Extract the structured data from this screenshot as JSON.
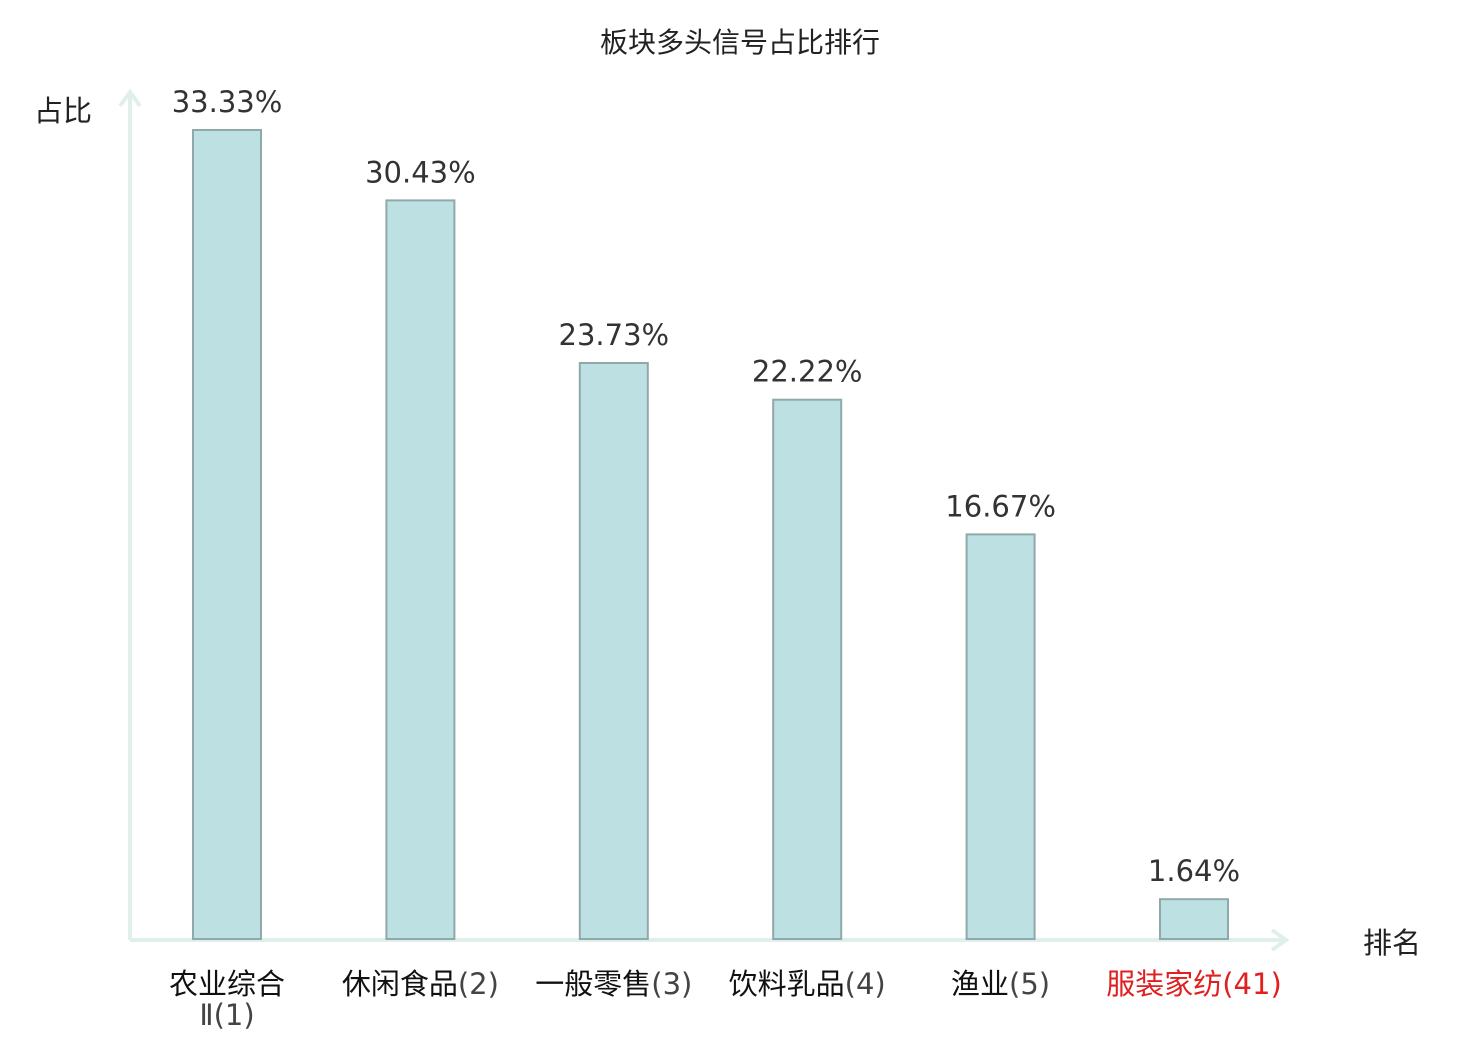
{
  "chart_data": {
    "type": "bar",
    "title": "板块多头信号占比排行",
    "ylabel": "占比",
    "xlabel": "排名",
    "ylim": [
      0,
      35
    ],
    "grid": false,
    "legend": "none",
    "categories": [
      {
        "name": "农业综合Ⅱ",
        "rank": "(1)"
      },
      {
        "name": "休闲食品",
        "rank": "(2)"
      },
      {
        "name": "一般零售",
        "rank": "(3)"
      },
      {
        "name": "饮料乳品",
        "rank": "(4)"
      },
      {
        "name": "渔业",
        "rank": "(5)"
      },
      {
        "name": "服装家纺",
        "rank": "(41)"
      }
    ],
    "values": [
      33.33,
      30.43,
      23.73,
      22.22,
      16.67,
      1.64
    ],
    "value_labels": [
      "33.33%",
      "30.43%",
      "23.73%",
      "22.22%",
      "16.67%",
      "1.64%"
    ],
    "highlight_index": 5,
    "colors": {
      "bar_fill": "#bde0e2",
      "bar_stroke": "#8fa8aa",
      "axis": "#dff0ec",
      "text": "#333333",
      "label": "#111111",
      "rank": "#444444",
      "highlight": "#e02020"
    }
  }
}
